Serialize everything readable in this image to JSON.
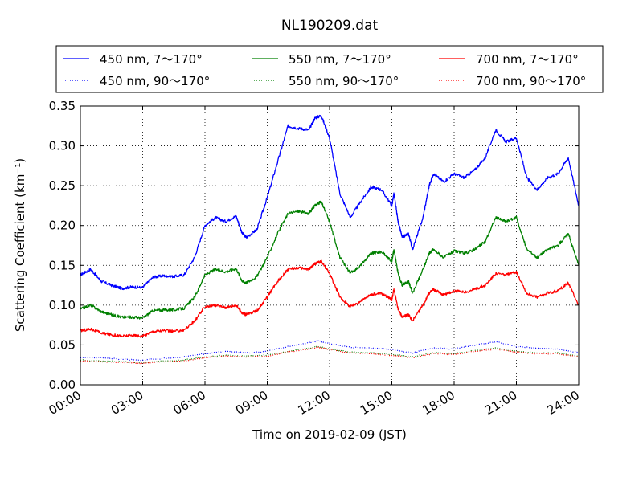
{
  "chart_data": {
    "type": "line",
    "title": "NL190209.dat",
    "xlabel": "Time on 2019-02-09 (JST)",
    "ylabel": "Scattering Coefficient (km⁻¹)",
    "xlim": [
      0,
      24
    ],
    "ylim": [
      0,
      0.35
    ],
    "grid": true,
    "legend_position": "top",
    "x_ticks": [
      0,
      3,
      6,
      9,
      12,
      15,
      18,
      21,
      24
    ],
    "x_tick_labels": [
      "00:00",
      "03:00",
      "06:00",
      "09:00",
      "12:00",
      "15:00",
      "18:00",
      "21:00",
      "24:00"
    ],
    "y_ticks": [
      0,
      0.05,
      0.1,
      0.15,
      0.2,
      0.25,
      0.3,
      0.35
    ],
    "y_tick_labels": [
      "0.00",
      "0.05",
      "0.10",
      "0.15",
      "0.20",
      "0.25",
      "0.30",
      "0.35"
    ],
    "series": [
      {
        "name": "450 nm, 7～170°",
        "color": "#0000ff",
        "style": "solid",
        "x": [
          0,
          0.5,
          1,
          1.5,
          2,
          2.5,
          3,
          3.5,
          4,
          4.5,
          5,
          5.5,
          6,
          6.5,
          7,
          7.5,
          7.8,
          8,
          8.5,
          9,
          9.5,
          10,
          10.5,
          11,
          11.3,
          11.6,
          12,
          12.5,
          13,
          13.5,
          14,
          14.5,
          15,
          15.1,
          15.3,
          15.5,
          15.8,
          16,
          16.5,
          16.8,
          17,
          17.5,
          18,
          18.5,
          19,
          19.5,
          20,
          20.5,
          21,
          21.5,
          22,
          22.5,
          23,
          23.5,
          24
        ],
        "y": [
          0.138,
          0.145,
          0.13,
          0.125,
          0.121,
          0.123,
          0.122,
          0.135,
          0.137,
          0.136,
          0.138,
          0.16,
          0.2,
          0.21,
          0.205,
          0.212,
          0.19,
          0.185,
          0.195,
          0.235,
          0.28,
          0.325,
          0.322,
          0.32,
          0.335,
          0.338,
          0.31,
          0.24,
          0.21,
          0.23,
          0.248,
          0.245,
          0.225,
          0.24,
          0.205,
          0.185,
          0.19,
          0.17,
          0.21,
          0.25,
          0.265,
          0.255,
          0.265,
          0.26,
          0.27,
          0.285,
          0.32,
          0.305,
          0.31,
          0.26,
          0.245,
          0.26,
          0.265,
          0.285,
          0.225
        ]
      },
      {
        "name": "450 nm, 90～170°",
        "color": "#0000ff",
        "style": "dotted",
        "x": [
          0,
          1,
          2,
          3,
          4,
          5,
          6,
          7,
          8,
          9,
          10,
          11,
          11.5,
          12,
          13,
          14,
          15,
          16,
          17,
          18,
          19,
          20,
          21,
          22,
          23,
          24
        ],
        "y": [
          0.034,
          0.034,
          0.032,
          0.031,
          0.033,
          0.035,
          0.039,
          0.042,
          0.04,
          0.042,
          0.048,
          0.053,
          0.055,
          0.052,
          0.047,
          0.046,
          0.044,
          0.04,
          0.046,
          0.045,
          0.05,
          0.054,
          0.048,
          0.046,
          0.045,
          0.04
        ]
      },
      {
        "name": "550 nm, 7～170°",
        "color": "#008000",
        "style": "solid",
        "x": [
          0,
          0.5,
          1,
          1.5,
          2,
          2.5,
          3,
          3.5,
          4,
          4.5,
          5,
          5.5,
          6,
          6.5,
          7,
          7.5,
          7.8,
          8,
          8.5,
          9,
          9.5,
          10,
          10.5,
          11,
          11.3,
          11.6,
          12,
          12.5,
          13,
          13.5,
          14,
          14.5,
          15,
          15.1,
          15.3,
          15.5,
          15.8,
          16,
          16.5,
          16.8,
          17,
          17.5,
          18,
          18.5,
          19,
          19.5,
          20,
          20.5,
          21,
          21.5,
          22,
          22.5,
          23,
          23.5,
          24
        ],
        "y": [
          0.095,
          0.1,
          0.092,
          0.088,
          0.085,
          0.085,
          0.084,
          0.093,
          0.094,
          0.094,
          0.096,
          0.11,
          0.138,
          0.145,
          0.142,
          0.146,
          0.13,
          0.128,
          0.136,
          0.16,
          0.19,
          0.215,
          0.218,
          0.215,
          0.225,
          0.23,
          0.205,
          0.16,
          0.14,
          0.15,
          0.165,
          0.167,
          0.155,
          0.17,
          0.14,
          0.125,
          0.13,
          0.115,
          0.145,
          0.165,
          0.17,
          0.16,
          0.168,
          0.165,
          0.17,
          0.18,
          0.21,
          0.205,
          0.21,
          0.17,
          0.16,
          0.17,
          0.175,
          0.19,
          0.15
        ]
      },
      {
        "name": "550 nm, 90～170°",
        "color": "#008000",
        "style": "dotted",
        "x": [
          0,
          1,
          2,
          3,
          4,
          5,
          6,
          7,
          8,
          9,
          10,
          11,
          11.5,
          12,
          13,
          14,
          15,
          16,
          17,
          18,
          19,
          20,
          21,
          22,
          23,
          24
        ],
        "y": [
          0.031,
          0.03,
          0.029,
          0.028,
          0.03,
          0.031,
          0.035,
          0.037,
          0.036,
          0.037,
          0.042,
          0.046,
          0.048,
          0.045,
          0.041,
          0.04,
          0.038,
          0.035,
          0.04,
          0.039,
          0.043,
          0.046,
          0.042,
          0.04,
          0.04,
          0.036
        ]
      },
      {
        "name": "700 nm, 7～170°",
        "color": "#ff0000",
        "style": "solid",
        "x": [
          0,
          0.5,
          1,
          1.5,
          2,
          2.5,
          3,
          3.5,
          4,
          4.5,
          5,
          5.5,
          6,
          6.5,
          7,
          7.5,
          7.8,
          8,
          8.5,
          9,
          9.5,
          10,
          10.5,
          11,
          11.3,
          11.6,
          12,
          12.5,
          13,
          13.5,
          14,
          14.5,
          15,
          15.1,
          15.3,
          15.5,
          15.8,
          16,
          16.5,
          16.8,
          17,
          17.5,
          18,
          18.5,
          19,
          19.5,
          20,
          20.5,
          21,
          21.5,
          22,
          22.5,
          23,
          23.5,
          24
        ],
        "y": [
          0.068,
          0.07,
          0.065,
          0.063,
          0.061,
          0.062,
          0.061,
          0.067,
          0.068,
          0.067,
          0.069,
          0.08,
          0.098,
          0.1,
          0.097,
          0.1,
          0.09,
          0.088,
          0.093,
          0.11,
          0.13,
          0.145,
          0.147,
          0.145,
          0.152,
          0.155,
          0.14,
          0.11,
          0.098,
          0.105,
          0.113,
          0.115,
          0.107,
          0.12,
          0.095,
          0.085,
          0.088,
          0.08,
          0.1,
          0.115,
          0.12,
          0.113,
          0.118,
          0.116,
          0.12,
          0.125,
          0.14,
          0.138,
          0.142,
          0.115,
          0.11,
          0.115,
          0.118,
          0.128,
          0.1
        ]
      },
      {
        "name": "700 nm, 90～170°",
        "color": "#ff0000",
        "style": "dotted",
        "x": [
          0,
          1,
          2,
          3,
          4,
          5,
          6,
          7,
          8,
          9,
          10,
          11,
          11.5,
          12,
          13,
          14,
          15,
          16,
          17,
          18,
          19,
          20,
          21,
          22,
          23,
          24
        ],
        "y": [
          0.03,
          0.029,
          0.028,
          0.027,
          0.029,
          0.03,
          0.034,
          0.036,
          0.035,
          0.036,
          0.041,
          0.045,
          0.047,
          0.044,
          0.04,
          0.039,
          0.037,
          0.034,
          0.039,
          0.038,
          0.042,
          0.045,
          0.041,
          0.039,
          0.039,
          0.035
        ]
      }
    ]
  }
}
